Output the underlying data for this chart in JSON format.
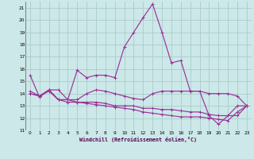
{
  "xlabel": "Windchill (Refroidissement éolien,°C)",
  "ylabel": "",
  "bg_color": "#cce8e8",
  "grid_color": "#aacccc",
  "line_color": "#993399",
  "xlim": [
    -0.5,
    23.5
  ],
  "ylim": [
    11,
    21.5
  ],
  "yticks": [
    11,
    12,
    13,
    14,
    15,
    16,
    17,
    18,
    19,
    20,
    21
  ],
  "xticks": [
    0,
    1,
    2,
    3,
    4,
    5,
    6,
    7,
    8,
    9,
    10,
    11,
    12,
    13,
    14,
    15,
    16,
    17,
    18,
    19,
    20,
    21,
    22,
    23
  ],
  "series1_x": [
    0,
    1,
    2,
    3,
    4,
    5,
    6,
    7,
    8,
    9,
    10,
    11,
    12,
    13,
    14,
    15,
    16,
    17,
    18,
    19,
    20,
    21,
    22,
    23
  ],
  "series1_y": [
    15.5,
    13.7,
    14.3,
    14.3,
    13.5,
    15.9,
    15.3,
    15.5,
    15.5,
    15.3,
    17.8,
    19.0,
    20.2,
    21.3,
    19.0,
    16.5,
    16.7,
    14.2,
    14.2,
    12.2,
    11.5,
    12.2,
    13.0,
    13.0
  ],
  "series2_x": [
    0,
    1,
    2,
    3,
    4,
    5,
    6,
    7,
    8,
    9,
    10,
    11,
    12,
    13,
    14,
    15,
    16,
    17,
    18,
    19,
    20,
    21,
    22,
    23
  ],
  "series2_y": [
    14.2,
    13.8,
    14.3,
    13.5,
    13.5,
    13.5,
    14.0,
    14.3,
    14.2,
    14.0,
    13.8,
    13.6,
    13.5,
    14.0,
    14.2,
    14.2,
    14.2,
    14.2,
    14.2,
    14.0,
    14.0,
    14.0,
    13.8,
    13.0
  ],
  "series3_x": [
    0,
    1,
    2,
    3,
    4,
    5,
    6,
    7,
    8,
    9,
    10,
    11,
    12,
    13,
    14,
    15,
    16,
    17,
    18,
    19,
    20,
    21,
    22,
    23
  ],
  "series3_y": [
    14.0,
    13.8,
    14.3,
    13.5,
    13.5,
    13.3,
    13.3,
    13.3,
    13.2,
    13.0,
    13.0,
    13.0,
    12.8,
    12.8,
    12.7,
    12.7,
    12.6,
    12.5,
    12.5,
    12.3,
    12.2,
    12.2,
    12.2,
    13.0
  ],
  "series4_x": [
    0,
    1,
    2,
    3,
    4,
    5,
    6,
    7,
    8,
    9,
    10,
    11,
    12,
    13,
    14,
    15,
    16,
    17,
    18,
    19,
    20,
    21,
    22,
    23
  ],
  "series4_y": [
    14.0,
    13.8,
    14.2,
    13.5,
    13.3,
    13.3,
    13.2,
    13.1,
    13.0,
    12.9,
    12.8,
    12.7,
    12.5,
    12.4,
    12.3,
    12.2,
    12.1,
    12.1,
    12.1,
    12.0,
    11.9,
    11.8,
    12.5,
    13.0
  ]
}
